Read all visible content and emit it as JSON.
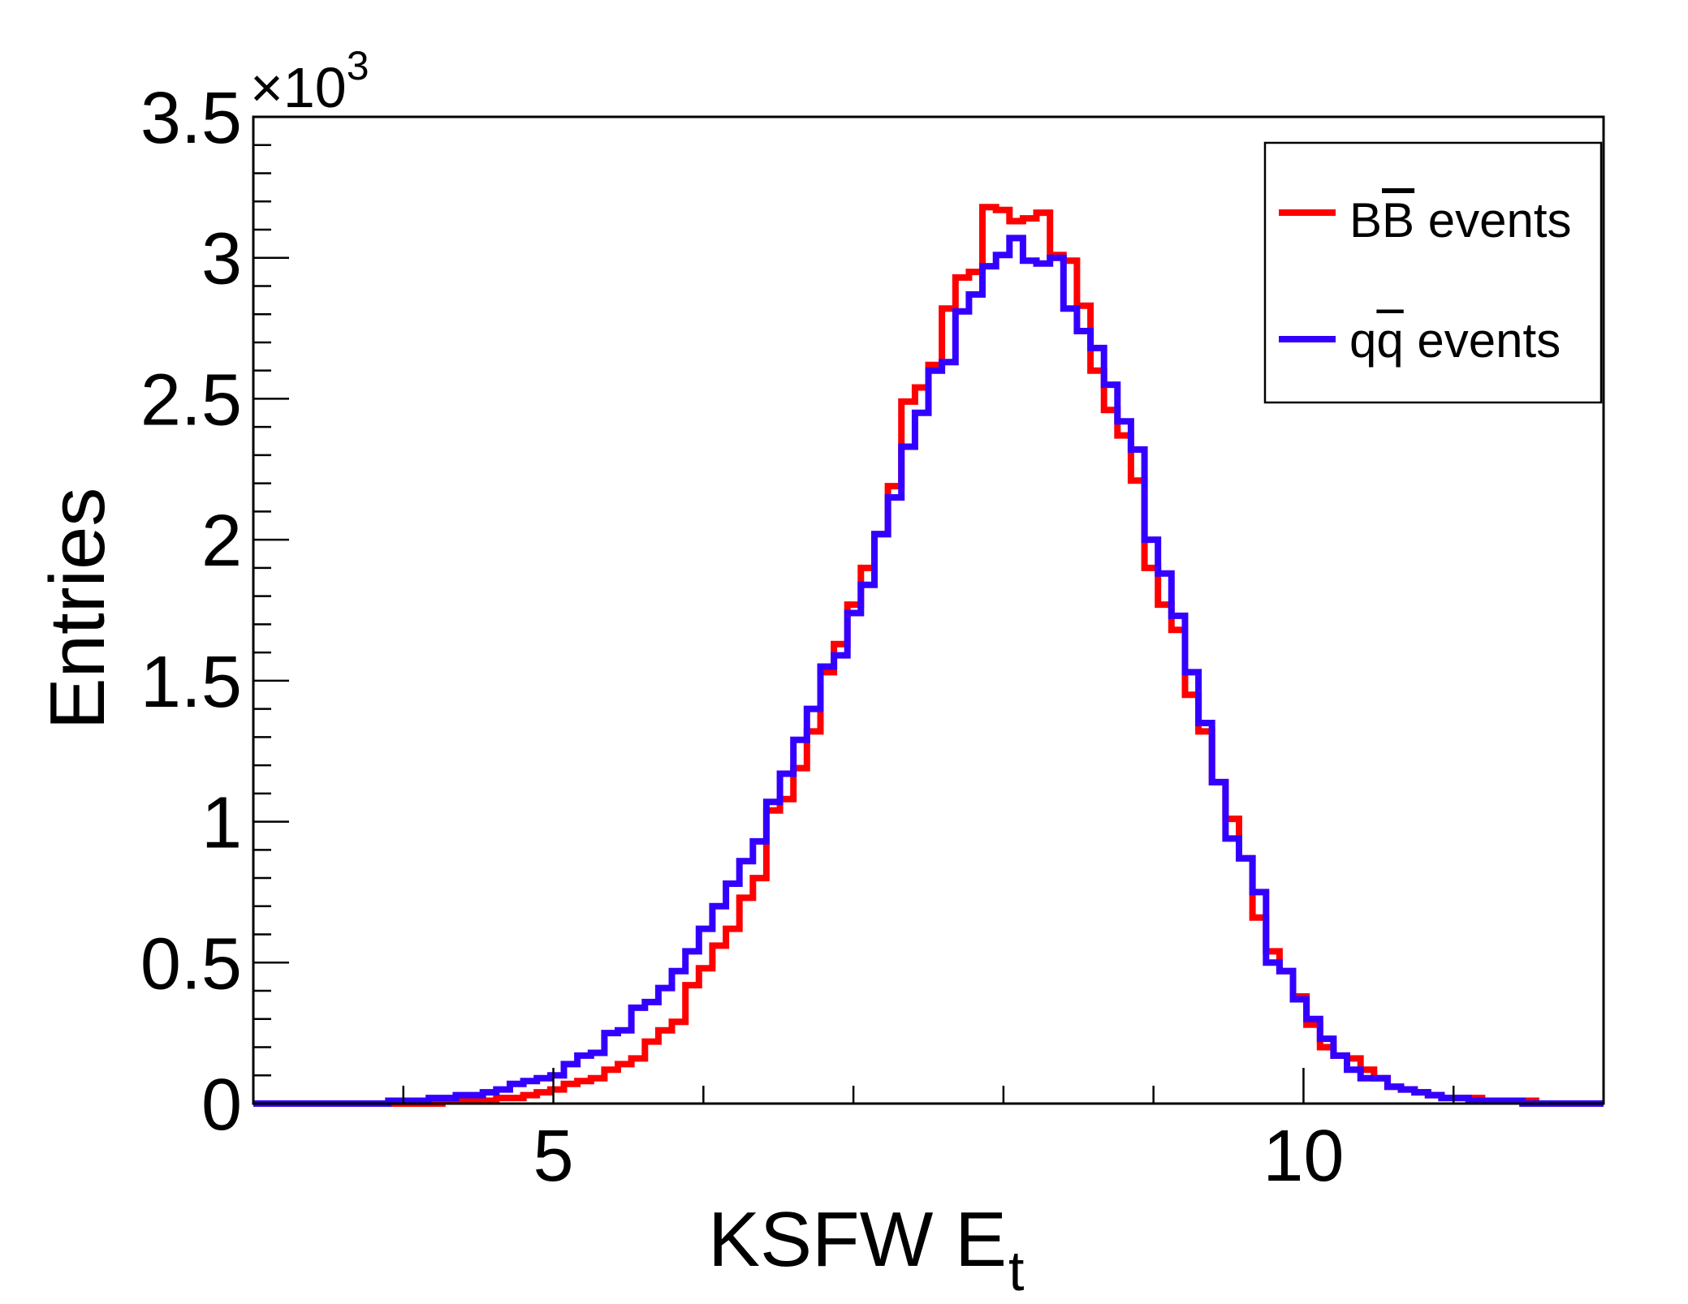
{
  "chart_data": {
    "type": "line",
    "xlabel": "KSFW E",
    "xlabel_sub": "t",
    "ylabel": "Entries",
    "y_multiplier_base": "×10",
    "y_multiplier_exp": "3",
    "xlim": [
      3,
      12
    ],
    "ylim": [
      0,
      3.5
    ],
    "x_bin_width": 0.09,
    "x_ticks": [
      {
        "value": 5,
        "label": "5"
      },
      {
        "value": 10,
        "label": "10"
      }
    ],
    "y_ticks": [
      {
        "value": 0,
        "label": "0"
      },
      {
        "value": 0.5,
        "label": "0.5"
      },
      {
        "value": 1,
        "label": "1"
      },
      {
        "value": 1.5,
        "label": "1.5"
      },
      {
        "value": 2,
        "label": "2"
      },
      {
        "value": 2.5,
        "label": "2.5"
      },
      {
        "value": 3,
        "label": "3"
      },
      {
        "value": 3.5,
        "label": "3.5"
      }
    ],
    "legend_position": "top-right",
    "series": [
      {
        "name_main": "B",
        "name_overline": "B",
        "name_rest": " events",
        "color": "#ff0000",
        "values": [
          0,
          0,
          0,
          0,
          0,
          0,
          0,
          0,
          0,
          0,
          0,
          0,
          0,
          0,
          0.01,
          0.01,
          0.01,
          0.01,
          0.02,
          0.02,
          0.03,
          0.04,
          0.05,
          0.07,
          0.08,
          0.09,
          0.12,
          0.14,
          0.16,
          0.22,
          0.26,
          0.29,
          0.42,
          0.48,
          0.56,
          0.62,
          0.73,
          0.8,
          1.04,
          1.08,
          1.19,
          1.32,
          1.53,
          1.63,
          1.77,
          1.9,
          2.02,
          2.19,
          2.49,
          2.54,
          2.62,
          2.82,
          2.93,
          2.95,
          3.18,
          3.17,
          3.13,
          3.14,
          3.16,
          3.01,
          2.99,
          2.83,
          2.6,
          2.46,
          2.37,
          2.21,
          1.9,
          1.77,
          1.68,
          1.45,
          1.32,
          1.14,
          1.01,
          0.87,
          0.66,
          0.54,
          0.47,
          0.38,
          0.28,
          0.2,
          0.17,
          0.16,
          0.12,
          0.09,
          0.06,
          0.05,
          0.04,
          0.03,
          0.02,
          0.02,
          0.02,
          0.01,
          0.01,
          0.01,
          0.01,
          0,
          0,
          0,
          0,
          0
        ]
      },
      {
        "name_main": "q",
        "name_overline": "q",
        "name_rest": " events",
        "color": "#3300ff",
        "values": [
          0,
          0,
          0,
          0,
          0,
          0,
          0,
          0,
          0,
          0,
          0.01,
          0.01,
          0.01,
          0.02,
          0.02,
          0.03,
          0.03,
          0.04,
          0.05,
          0.07,
          0.08,
          0.09,
          0.1,
          0.14,
          0.17,
          0.18,
          0.25,
          0.26,
          0.34,
          0.36,
          0.41,
          0.47,
          0.54,
          0.62,
          0.7,
          0.78,
          0.86,
          0.93,
          1.07,
          1.17,
          1.29,
          1.4,
          1.55,
          1.59,
          1.74,
          1.84,
          2.02,
          2.15,
          2.33,
          2.45,
          2.6,
          2.63,
          2.81,
          2.87,
          2.97,
          3.01,
          3.07,
          2.99,
          2.98,
          3.0,
          2.82,
          2.74,
          2.68,
          2.55,
          2.42,
          2.32,
          2.0,
          1.88,
          1.73,
          1.53,
          1.35,
          1.14,
          0.94,
          0.87,
          0.75,
          0.5,
          0.47,
          0.37,
          0.3,
          0.23,
          0.17,
          0.12,
          0.09,
          0.09,
          0.06,
          0.05,
          0.04,
          0.03,
          0.02,
          0.02,
          0.01,
          0.01,
          0.01,
          0.01,
          0,
          0,
          0,
          0,
          0,
          0
        ]
      }
    ]
  }
}
